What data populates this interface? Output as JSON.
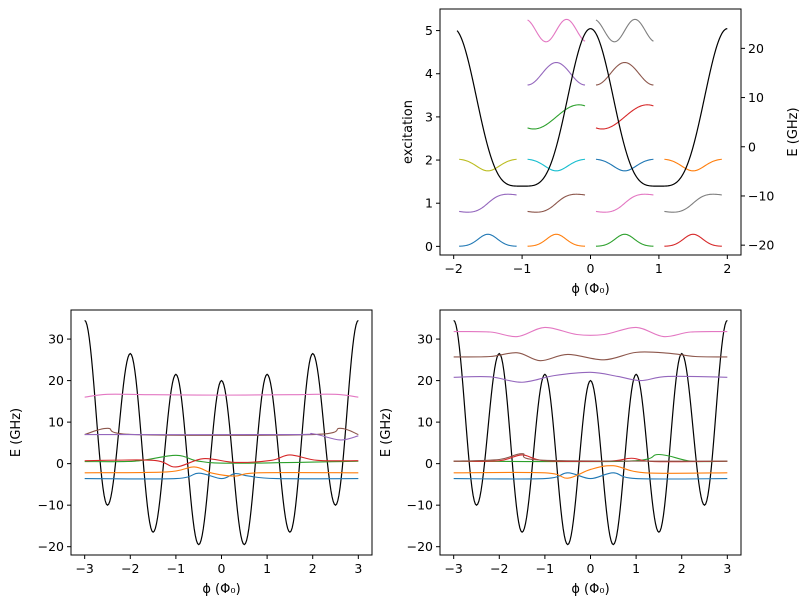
{
  "chart_data": [
    {
      "type": "line",
      "panel": "top-right",
      "xlabel": "ϕ (Φ₀)",
      "ylabel_left": "excitation",
      "ylabel_right": "E (GHz)",
      "xlim": [
        -2.2,
        2.2
      ],
      "ylim_left": [
        -0.2,
        5.5
      ],
      "ylim_right": [
        -22,
        28
      ],
      "xticks": [
        -2,
        -1,
        0,
        1,
        2
      ],
      "yticks_left": [
        0,
        1,
        2,
        3,
        4,
        5
      ],
      "yticks_right": [
        -20,
        -10,
        0,
        10,
        20
      ],
      "xtick_labels": [
        "−2",
        "−1",
        "0",
        "1",
        "2"
      ],
      "ytick_labels_left": [
        "0",
        "1",
        "2",
        "3",
        "4",
        "5"
      ],
      "ytick_labels_right": [
        "−20",
        "−10",
        "0",
        "10",
        "20"
      ],
      "potential": {
        "color": "#000000",
        "formula": "E = 4 + 16*cos(pi*phi) + 4*cos(2*pi*phi)",
        "x_range": [
          -1.95,
          2.0
        ]
      },
      "wavefunctions": {
        "centers": [
          -1.5,
          -0.5,
          0.5,
          1.5
        ],
        "half_width": 0.42,
        "levels": [
          {
            "n": 0,
            "colors": [
              "#1f77b4",
              "#ff7f0e",
              "#2ca02c",
              "#d62728"
            ],
            "centers": [
              -1.5,
              -0.5,
              0.5,
              1.5
            ]
          },
          {
            "n": 1,
            "colors": [
              "#9467bd",
              "#8c564b",
              "#e377c2",
              "#7f7f7f"
            ],
            "centers": [
              -1.5,
              -0.5,
              0.5,
              1.5
            ]
          },
          {
            "n": 2,
            "colors": [
              "#bcbd22",
              "#17becf",
              "#1f77b4",
              "#ff7f0e"
            ],
            "centers": [
              -1.5,
              -0.5,
              0.5,
              1.5
            ]
          },
          {
            "n": 3,
            "colors": [
              "#2ca02c",
              "#d62728"
            ],
            "centers": [
              -0.5,
              0.5
            ]
          },
          {
            "n": 4,
            "colors": [
              "#9467bd",
              "#8c564b"
            ],
            "centers": [
              -0.5,
              0.5
            ]
          },
          {
            "n": 5,
            "colors": [
              "#e377c2",
              "#7f7f7f"
            ],
            "centers": [
              -0.5,
              0.5
            ]
          }
        ]
      }
    },
    {
      "type": "line",
      "panel": "bottom-left",
      "xlabel": "ϕ (Φ₀)",
      "ylabel": "E (GHz)",
      "xlim": [
        -3.3,
        3.3
      ],
      "ylim": [
        -22,
        37
      ],
      "xticks": [
        -3,
        -2,
        -1,
        0,
        1,
        2,
        3
      ],
      "yticks": [
        -20,
        -10,
        0,
        10,
        20,
        30
      ],
      "xtick_labels": [
        "−3",
        "−2",
        "−1",
        "0",
        "1",
        "2",
        "3"
      ],
      "ytick_labels": [
        "−20",
        "−10",
        "0",
        "10",
        "20",
        "30"
      ],
      "potential": {
        "color": "#000000",
        "points": [
          [
            -3,
            34.5
          ],
          [
            -2.5,
            -10
          ],
          [
            -2,
            26.5
          ],
          [
            -1.5,
            -16.5
          ],
          [
            -1,
            21.5
          ],
          [
            -0.5,
            -19.5
          ],
          [
            0,
            20
          ],
          [
            0.5,
            -19.5
          ],
          [
            1,
            21.5
          ],
          [
            1.5,
            -16.5
          ],
          [
            2,
            26.5
          ],
          [
            2.5,
            -10
          ],
          [
            3,
            34.5
          ]
        ]
      },
      "series": [
        {
          "color": "#1f77b4",
          "points": [
            [
              -3,
              -3.6
            ],
            [
              -1,
              -3.6
            ],
            [
              -0.5,
              -2.3
            ],
            [
              0,
              -3.6
            ],
            [
              0.3,
              -2.4
            ],
            [
              0.6,
              -3.0
            ],
            [
              1.2,
              -3.6
            ],
            [
              3,
              -3.6
            ]
          ]
        },
        {
          "color": "#ff7f0e",
          "points": [
            [
              -3,
              -2.2
            ],
            [
              -1.2,
              -2.0
            ],
            [
              -0.6,
              -0.8
            ],
            [
              -0.2,
              -2.3
            ],
            [
              0.3,
              -3.0
            ],
            [
              0.8,
              -2.2
            ],
            [
              3,
              -2.2
            ]
          ]
        },
        {
          "color": "#2ca02c",
          "points": [
            [
              -3,
              0.5
            ],
            [
              -1.9,
              0.6
            ],
            [
              -1.0,
              2.0
            ],
            [
              -0.5,
              0.6
            ],
            [
              0.3,
              0.1
            ],
            [
              3,
              0.6
            ]
          ]
        },
        {
          "color": "#d62728",
          "points": [
            [
              -3,
              0.7
            ],
            [
              -1.5,
              0.8
            ],
            [
              -1.0,
              -0.8
            ],
            [
              -0.4,
              1.2
            ],
            [
              0.3,
              0.3
            ],
            [
              1.1,
              0.8
            ],
            [
              1.5,
              2.1
            ],
            [
              2.1,
              0.8
            ],
            [
              3,
              0.7
            ]
          ]
        },
        {
          "color": "#8c564b",
          "points": [
            [
              -3,
              7.0
            ],
            [
              -2.5,
              8.5
            ],
            [
              -1.9,
              7.0
            ],
            [
              2.0,
              7.0
            ],
            [
              2.6,
              8.5
            ],
            [
              3,
              7.0
            ]
          ]
        },
        {
          "color": "#9467bd",
          "points": [
            [
              -3,
              7.0
            ],
            [
              1.5,
              7.0
            ],
            [
              2.0,
              7.2
            ],
            [
              2.6,
              5.7
            ],
            [
              3,
              6.7
            ]
          ]
        },
        {
          "color": "#e377c2",
          "points": [
            [
              -3,
              16.0
            ],
            [
              -2.5,
              16.7
            ],
            [
              -1.5,
              16.6
            ],
            [
              0,
              16.5
            ],
            [
              1.5,
              16.6
            ],
            [
              2.5,
              16.7
            ],
            [
              3,
              16.0
            ]
          ]
        }
      ]
    },
    {
      "type": "line",
      "panel": "bottom-right",
      "xlabel": "ϕ (Φ₀)",
      "ylabel": "E (GHz)",
      "xlim": [
        -3.3,
        3.3
      ],
      "ylim": [
        -22,
        37
      ],
      "xticks": [
        -3,
        -2,
        -1,
        0,
        1,
        2,
        3
      ],
      "yticks": [
        -20,
        -10,
        0,
        10,
        20,
        30
      ],
      "xtick_labels": [
        "−3",
        "−2",
        "−1",
        "0",
        "1",
        "2",
        "3"
      ],
      "ytick_labels": [
        "−20",
        "−10",
        "0",
        "10",
        "20",
        "30"
      ],
      "potential": {
        "color": "#000000",
        "points": [
          [
            -3,
            34.5
          ],
          [
            -2.5,
            -10
          ],
          [
            -2,
            26.5
          ],
          [
            -1.5,
            -16.5
          ],
          [
            -1,
            21.5
          ],
          [
            -0.5,
            -19.5
          ],
          [
            0,
            20
          ],
          [
            0.5,
            -19.5
          ],
          [
            1,
            21.5
          ],
          [
            1.5,
            -16.5
          ],
          [
            2,
            26.5
          ],
          [
            2.5,
            -10
          ],
          [
            3,
            34.5
          ]
        ]
      },
      "series": [
        {
          "color": "#1f77b4",
          "points": [
            [
              -3,
              -3.6
            ],
            [
              -1,
              -3.6
            ],
            [
              -0.5,
              -2.2
            ],
            [
              0,
              -3.6
            ],
            [
              0.5,
              -2.2
            ],
            [
              1,
              -3.6
            ],
            [
              3,
              -3.6
            ]
          ]
        },
        {
          "color": "#ff7f0e",
          "points": [
            [
              -3,
              -2.2
            ],
            [
              -1.0,
              -2.2
            ],
            [
              -0.5,
              -3.5
            ],
            [
              0,
              -1.4
            ],
            [
              0.5,
              -0.5
            ],
            [
              1.2,
              -2.2
            ],
            [
              3,
              -2.2
            ]
          ]
        },
        {
          "color": "#2ca02c",
          "points": [
            [
              -3,
              0.6
            ],
            [
              0.8,
              0.6
            ],
            [
              1.5,
              2.2
            ],
            [
              2.2,
              0.6
            ],
            [
              3,
              0.6
            ]
          ]
        },
        {
          "color": "#d62728",
          "points": [
            [
              -3,
              0.6
            ],
            [
              -2,
              0.7
            ],
            [
              -1.5,
              2.1
            ],
            [
              -1.0,
              0.7
            ],
            [
              0.4,
              0.6
            ],
            [
              0.9,
              1.3
            ],
            [
              1.4,
              0.5
            ],
            [
              3,
              0.6
            ]
          ]
        },
        {
          "color": "#8c564b",
          "points": [
            [
              -3,
              0.6
            ],
            [
              -2,
              1.0
            ],
            [
              -1.5,
              2.4
            ],
            [
              -1.0,
              0.8
            ],
            [
              3,
              0.6
            ]
          ]
        },
        {
          "color": "#9467bd",
          "points": [
            [
              -3,
              20.8
            ],
            [
              -2.2,
              20.9
            ],
            [
              -1.5,
              19.6
            ],
            [
              -0.8,
              21.2
            ],
            [
              0,
              22.0
            ],
            [
              0.6,
              21.0
            ],
            [
              1.1,
              20.0
            ],
            [
              1.7,
              21.0
            ],
            [
              3,
              20.8
            ]
          ]
        },
        {
          "color": "#8c564b",
          "points": [
            [
              -3,
              25.7
            ],
            [
              -2.2,
              25.8
            ],
            [
              -1.6,
              26.7
            ],
            [
              -1.1,
              24.8
            ],
            [
              -0.5,
              26.3
            ],
            [
              0.3,
              25.0
            ],
            [
              1.0,
              26.8
            ],
            [
              1.7,
              26.6
            ],
            [
              2.3,
              25.8
            ],
            [
              3,
              25.7
            ]
          ]
        },
        {
          "color": "#e377c2",
          "points": [
            [
              -3,
              31.8
            ],
            [
              -2.2,
              31.7
            ],
            [
              -1.6,
              30.6
            ],
            [
              -1.0,
              32.8
            ],
            [
              -0.3,
              31.1
            ],
            [
              0.3,
              31.1
            ],
            [
              1.0,
              32.8
            ],
            [
              1.6,
              30.6
            ],
            [
              2.2,
              31.7
            ],
            [
              3,
              31.8
            ]
          ]
        }
      ]
    }
  ]
}
